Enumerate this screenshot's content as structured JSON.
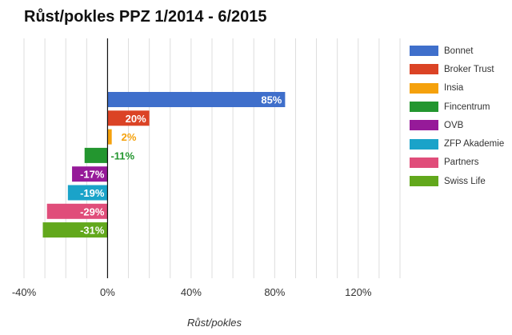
{
  "chart_data": {
    "type": "bar",
    "orientation": "horizontal",
    "title": "Růst/pokles PPZ 1/2014 - 6/2015",
    "xlabel": "Růst/pokles",
    "ylabel": "",
    "xlim": [
      -40,
      140
    ],
    "xticks": [
      -40,
      0,
      40,
      80,
      120
    ],
    "xtick_labels": [
      "-40%",
      "0%",
      "40%",
      "80%",
      "120%"
    ],
    "grid": true,
    "legend_position": "right",
    "series": [
      {
        "name": "Bonnet",
        "value": 85,
        "label": "85%",
        "color": "#3f6fcb"
      },
      {
        "name": "Broker Trust",
        "value": 20,
        "label": "20%",
        "color": "#db4325"
      },
      {
        "name": "Insia",
        "value": 2,
        "label": "2%",
        "color": "#f5a10c"
      },
      {
        "name": "Fincentrum",
        "value": -11,
        "label": "-11%",
        "color": "#23962f"
      },
      {
        "name": "OVB",
        "value": -17,
        "label": "-17%",
        "color": "#961a99"
      },
      {
        "name": "ZFP Akademie",
        "value": -19,
        "label": "-19%",
        "color": "#1aa3c9"
      },
      {
        "name": "Partners",
        "value": -29,
        "label": "-29%",
        "color": "#e04d7a"
      },
      {
        "name": "Swiss Life",
        "value": -31,
        "label": "-31%",
        "color": "#62a81c"
      }
    ]
  }
}
